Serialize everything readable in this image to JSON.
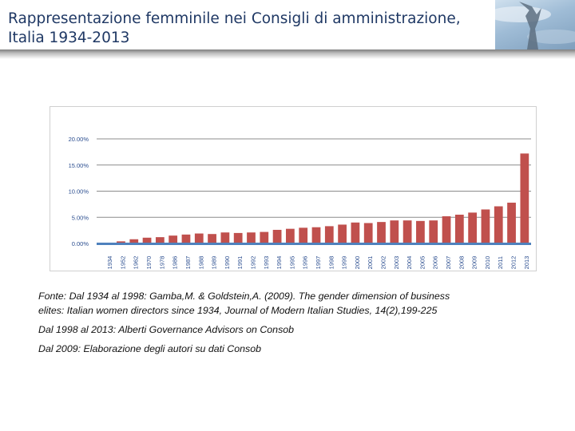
{
  "header": {
    "title_line1": "Rappresentazione femminile nei Consigli di amministrazione,",
    "title_line2": "Italia 1934-2013",
    "image_icon": "statue-photo-icon"
  },
  "chart_data": {
    "type": "bar",
    "title": "",
    "xlabel": "",
    "ylabel": "",
    "ylim": [
      0,
      20
    ],
    "y_tick_labels": [
      "0.00%",
      "5.00%",
      "10.00%",
      "15.00%",
      "20.00%"
    ],
    "y_tick_values": [
      0,
      5,
      10,
      15,
      20
    ],
    "grid": true,
    "bar_color": "#c0504d",
    "axis_color": "#4f81bd",
    "categories": [
      "1934",
      "1952",
      "1962",
      "1970",
      "1978",
      "1986",
      "1987",
      "1988",
      "1989",
      "1990",
      "1991",
      "1992",
      "1993",
      "1994",
      "1995",
      "1996",
      "1997",
      "1998",
      "1999",
      "2000",
      "2001",
      "2002",
      "2003",
      "2004",
      "2005",
      "2006",
      "2007",
      "2008",
      "2009",
      "2010",
      "2011",
      "2012",
      "2013"
    ],
    "values": [
      0.1,
      0.4,
      0.8,
      1.1,
      1.2,
      1.5,
      1.7,
      1.9,
      1.8,
      2.1,
      2.0,
      2.1,
      2.2,
      2.6,
      2.8,
      3.0,
      3.1,
      3.3,
      3.6,
      4.0,
      3.9,
      4.1,
      4.4,
      4.4,
      4.3,
      4.4,
      5.2,
      5.5,
      5.9,
      6.5,
      7.1,
      7.8,
      17.2
    ]
  },
  "sources": {
    "line1": "Fonte: Dal 1934 al 1998: Gamba,M. & Goldstein,A. (2009). The gender dimension of business",
    "line2": "elites: Italian women directors since 1934, Journal of Modern Italian  Studies, 14(2),199-225",
    "line3": "Dal 1998 al 2013: Alberti Governance Advisors  on Consob",
    "line4": "Dal 2009: Elaborazione degli autori su dati Consob"
  }
}
